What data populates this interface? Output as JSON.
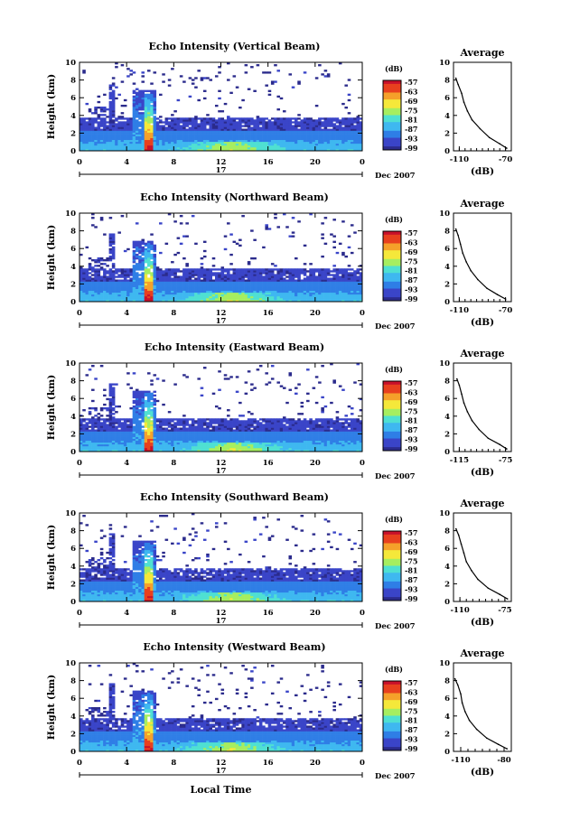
{
  "chart_data": [
    {
      "type": "heatmap",
      "title": "Echo Intensity (Vertical Beam)",
      "ylabel": "Height (km)",
      "yticks": [
        "0",
        "2",
        "4",
        "6",
        "8",
        "10"
      ],
      "ylim": [
        0,
        10
      ],
      "xticks": [
        "0",
        "4",
        "8",
        "12",
        "16",
        "20",
        "0"
      ],
      "xlim": [
        0,
        24
      ],
      "day_label": "17",
      "month_label": "Dec 2007",
      "colorbar": {
        "unit": "(dB)",
        "ticks": [
          "-57",
          "-63",
          "-69",
          "-75",
          "-81",
          "-87",
          "-93",
          "-99"
        ]
      },
      "average": {
        "title": "Average",
        "xlabel": "(dB)",
        "xticks": [
          "-110",
          "-70"
        ],
        "xlim": [
          -115,
          -65
        ],
        "yticks": [
          "0",
          "2",
          "4",
          "6",
          "8",
          "10"
        ],
        "profile": [
          [
            0.3,
            -69
          ],
          [
            0.8,
            -75
          ],
          [
            1.5,
            -84
          ],
          [
            2.5,
            -92
          ],
          [
            3.5,
            -99
          ],
          [
            4.5,
            -103
          ],
          [
            5.5,
            -106
          ],
          [
            6.5,
            -108
          ],
          [
            7.5,
            -111
          ],
          [
            8.2,
            -113
          ]
        ]
      }
    },
    {
      "type": "heatmap",
      "title": "Echo Intensity (Northward Beam)",
      "ylabel": "Height (km)",
      "yticks": [
        "0",
        "2",
        "4",
        "6",
        "8",
        "10"
      ],
      "ylim": [
        0,
        10
      ],
      "xticks": [
        "0",
        "4",
        "8",
        "12",
        "16",
        "20",
        "0"
      ],
      "xlim": [
        0,
        24
      ],
      "day_label": "17",
      "month_label": "Dec 2007",
      "colorbar": {
        "unit": "(dB)",
        "ticks": [
          "-57",
          "-63",
          "-69",
          "-75",
          "-81",
          "-87",
          "-93",
          "-99"
        ]
      },
      "average": {
        "title": "Average",
        "xlabel": "(dB)",
        "xticks": [
          "-110",
          "-70"
        ],
        "xlim": [
          -115,
          -65
        ],
        "yticks": [
          "0",
          "2",
          "4",
          "6",
          "8",
          "10"
        ],
        "profile": [
          [
            0.3,
            -70
          ],
          [
            0.8,
            -77
          ],
          [
            1.5,
            -86
          ],
          [
            2.5,
            -94
          ],
          [
            3.5,
            -100
          ],
          [
            4.5,
            -104
          ],
          [
            5.5,
            -107
          ],
          [
            6.5,
            -109
          ],
          [
            7.5,
            -111
          ],
          [
            8.2,
            -113
          ]
        ]
      }
    },
    {
      "type": "heatmap",
      "title": "Echo Intensity (Eastward Beam)",
      "ylabel": "Height (km)",
      "yticks": [
        "0",
        "2",
        "4",
        "6",
        "8",
        "10"
      ],
      "ylim": [
        0,
        10
      ],
      "xticks": [
        "0",
        "4",
        "8",
        "12",
        "16",
        "20",
        "0"
      ],
      "xlim": [
        0,
        24
      ],
      "day_label": "17",
      "month_label": "Dec 2007",
      "colorbar": {
        "unit": "(dB)",
        "ticks": [
          "-57",
          "-63",
          "-69",
          "-75",
          "-81",
          "-87",
          "-93",
          "-99"
        ]
      },
      "average": {
        "title": "Average",
        "xlabel": "(dB)",
        "xticks": [
          "-115",
          "-75"
        ],
        "xlim": [
          -120,
          -70
        ],
        "yticks": [
          "0",
          "2",
          "4",
          "6",
          "8",
          "10"
        ],
        "profile": [
          [
            0.3,
            -74
          ],
          [
            0.8,
            -80
          ],
          [
            1.5,
            -90
          ],
          [
            2.5,
            -98
          ],
          [
            3.5,
            -104
          ],
          [
            4.5,
            -108
          ],
          [
            5.5,
            -111
          ],
          [
            6.5,
            -113
          ],
          [
            7.5,
            -115
          ],
          [
            8.2,
            -117
          ]
        ]
      }
    },
    {
      "type": "heatmap",
      "title": "Echo Intensity (Southward Beam)",
      "ylabel": "Height (km)",
      "yticks": [
        "0",
        "2",
        "4",
        "6",
        "8",
        "10"
      ],
      "ylim": [
        0,
        10
      ],
      "xticks": [
        "0",
        "4",
        "8",
        "12",
        "16",
        "20",
        "0"
      ],
      "xlim": [
        0,
        24
      ],
      "day_label": "17",
      "month_label": "Dec 2007",
      "colorbar": {
        "unit": "(dB)",
        "ticks": [
          "-57",
          "-63",
          "-69",
          "-75",
          "-81",
          "-87",
          "-93",
          "-99"
        ]
      },
      "average": {
        "title": "Average",
        "xlabel": "(dB)",
        "xticks": [
          "-110",
          "-75"
        ],
        "xlim": [
          -115,
          -70
        ],
        "yticks": [
          "0",
          "2",
          "4",
          "6",
          "8",
          "10"
        ],
        "profile": [
          [
            0.3,
            -73
          ],
          [
            0.8,
            -79
          ],
          [
            1.5,
            -88
          ],
          [
            2.5,
            -96
          ],
          [
            3.5,
            -101
          ],
          [
            4.5,
            -105
          ],
          [
            5.5,
            -107
          ],
          [
            6.5,
            -109
          ],
          [
            7.5,
            -111
          ],
          [
            8.2,
            -113
          ]
        ]
      }
    },
    {
      "type": "heatmap",
      "title": "Echo Intensity (Westward Beam)",
      "ylabel": "Height (km)",
      "yticks": [
        "0",
        "2",
        "4",
        "6",
        "8",
        "10"
      ],
      "ylim": [
        0,
        10
      ],
      "xticks": [
        "0",
        "4",
        "8",
        "12",
        "16",
        "20",
        "0"
      ],
      "xlim": [
        0,
        24
      ],
      "day_label": "17",
      "month_label": "Dec 2007",
      "colorbar": {
        "unit": "(dB)",
        "ticks": [
          "-57",
          "-63",
          "-69",
          "-75",
          "-81",
          "-87",
          "-93",
          "-99"
        ]
      },
      "average": {
        "title": "Average",
        "xlabel": "(dB)",
        "xticks": [
          "-110",
          "-80"
        ],
        "xlim": [
          -115,
          -75
        ],
        "yticks": [
          "0",
          "2",
          "4",
          "6",
          "8",
          "10"
        ],
        "profile": [
          [
            0.3,
            -78
          ],
          [
            0.8,
            -84
          ],
          [
            1.5,
            -92
          ],
          [
            2.5,
            -99
          ],
          [
            3.5,
            -104
          ],
          [
            4.5,
            -107
          ],
          [
            5.5,
            -109
          ],
          [
            6.5,
            -110
          ],
          [
            7.5,
            -112
          ],
          [
            8.2,
            -114
          ]
        ]
      }
    }
  ],
  "xlabel_bottom": "Local Time",
  "colors": {
    "scale": [
      "#2b2b8c",
      "#3a45c8",
      "#2f7ee6",
      "#3fb8f0",
      "#4fe0d2",
      "#a6ee60",
      "#f5e83a",
      "#f5a02a",
      "#e8401e",
      "#c8102a"
    ]
  }
}
